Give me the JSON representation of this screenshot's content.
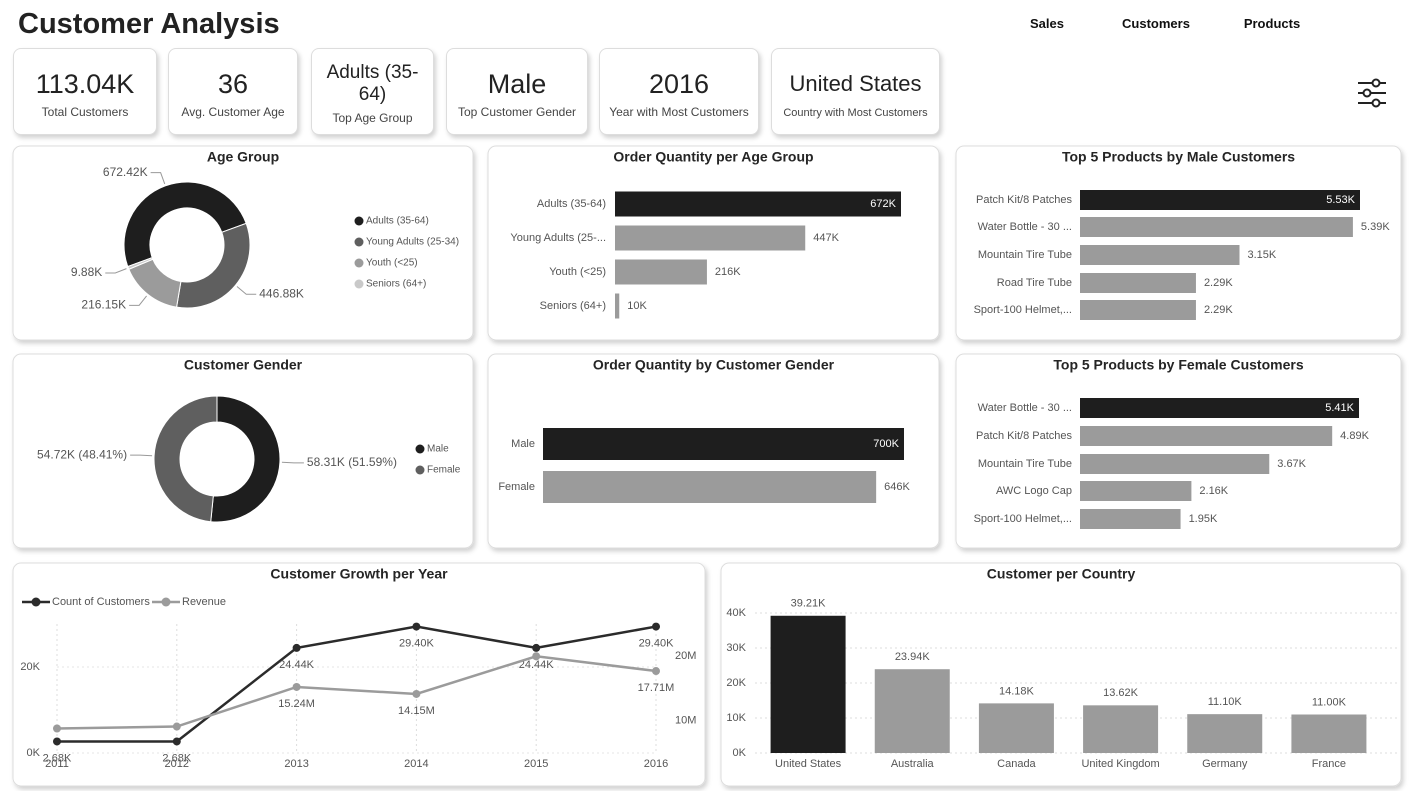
{
  "header": {
    "title": "Customer Analysis",
    "nav": [
      "Sales",
      "Customers",
      "Products"
    ]
  },
  "kpis": [
    {
      "value": "113.04K",
      "label": "Total Customers"
    },
    {
      "value": "36",
      "label": "Avg. Customer Age"
    },
    {
      "value": "Adults (35-64)",
      "label": "Top Age Group"
    },
    {
      "value": "Male",
      "label": "Top Customer Gender"
    },
    {
      "value": "2016",
      "label": "Year with Most Customers"
    },
    {
      "value": "United States",
      "label": "Country with Most Customers"
    }
  ],
  "chart_data": [
    {
      "type": "donut",
      "title": "Age Group",
      "categories": [
        "Adults (35-64)",
        "Young Adults (25-34)",
        "Youth (<25)",
        "Seniors (64+)"
      ],
      "values": [
        672420,
        446880,
        216150,
        9880
      ],
      "value_labels": [
        "672.42K",
        "446.88K",
        "216.15K",
        "9.88K"
      ],
      "colors": [
        "#1e1e1e",
        "#5f5f5f",
        "#9b9b9b",
        "#c9c9c9"
      ],
      "legend": "right"
    },
    {
      "type": "hbar",
      "title": "Order Quantity per Age Group",
      "categories": [
        "Adults (35-64)",
        "Young Adults (25-...",
        "Youth (<25)",
        "Seniors (64+)"
      ],
      "values": [
        672000,
        447000,
        216000,
        10000
      ],
      "value_labels": [
        "672K",
        "447K",
        "216K",
        "10K"
      ],
      "colors": [
        "#1e1e1e",
        "#9b9b9b",
        "#9b9b9b",
        "#9b9b9b"
      ]
    },
    {
      "type": "hbar",
      "title": "Top 5 Products by Male Customers",
      "categories": [
        "Patch Kit/8 Patches",
        "Water Bottle - 30 ...",
        "Mountain Tire Tube",
        "Road Tire Tube",
        "Sport-100 Helmet,..."
      ],
      "values": [
        5530,
        5390,
        3150,
        2290,
        2290
      ],
      "value_labels": [
        "5.53K",
        "5.39K",
        "3.15K",
        "2.29K",
        "2.29K"
      ],
      "colors": [
        "#1e1e1e",
        "#9b9b9b",
        "#9b9b9b",
        "#9b9b9b",
        "#9b9b9b"
      ]
    },
    {
      "type": "donut",
      "title": "Customer Gender",
      "categories": [
        "Male",
        "Female"
      ],
      "values": [
        58310,
        54720
      ],
      "value_labels": [
        "58.31K (51.59%)",
        "54.72K (48.41%)"
      ],
      "colors": [
        "#1e1e1e",
        "#5f5f5f"
      ],
      "legend": "right"
    },
    {
      "type": "hbar",
      "title": "Order Quantity by Customer Gender",
      "categories": [
        "Male",
        "Female"
      ],
      "values": [
        700000,
        646000
      ],
      "value_labels": [
        "700K",
        "646K"
      ],
      "colors": [
        "#1e1e1e",
        "#9b9b9b"
      ]
    },
    {
      "type": "hbar",
      "title": "Top 5 Products by Female Customers",
      "categories": [
        "Water Bottle - 30 ...",
        "Patch Kit/8 Patches",
        "Mountain Tire Tube",
        "AWC Logo Cap",
        "Sport-100 Helmet,..."
      ],
      "values": [
        5410,
        4890,
        3670,
        2160,
        1950
      ],
      "value_labels": [
        "5.41K",
        "4.89K",
        "3.67K",
        "2.16K",
        "1.95K"
      ],
      "colors": [
        "#1e1e1e",
        "#9b9b9b",
        "#9b9b9b",
        "#9b9b9b",
        "#9b9b9b"
      ]
    },
    {
      "type": "line",
      "title": "Customer Growth per Year",
      "x": [
        2011,
        2012,
        2013,
        2014,
        2015,
        2016
      ],
      "xlim": [
        2011,
        2016
      ],
      "series": [
        {
          "name": "Count of Customers",
          "color": "#2b2b2b",
          "values": [
            2680,
            2680,
            24440,
            29400,
            24440,
            29400
          ],
          "value_labels": [
            "2.68K",
            "2.68K",
            "24.44K",
            "29.40K",
            "24.44K",
            "29.40K"
          ]
        },
        {
          "name": "Revenue",
          "color": "#9b9b9b",
          "axis": "y2",
          "values": [
            8800000,
            9100000,
            15240000,
            14150000,
            20000000,
            17710000
          ],
          "value_labels": [
            null,
            null,
            "15.24M",
            "14.15M",
            null,
            "17.71M"
          ]
        }
      ],
      "ylim": [
        0,
        30000
      ],
      "yticks": [
        {
          "value": 0,
          "label": "0K"
        },
        {
          "value": 20000,
          "label": "20K"
        }
      ],
      "y2lim": [
        5000000,
        25000000
      ],
      "y2ticks": [
        {
          "value": 10000000,
          "label": "10M"
        },
        {
          "value": 20000000,
          "label": "20M"
        }
      ],
      "grid": true,
      "legend": "top-left"
    },
    {
      "type": "bar",
      "title": "Customer per Country",
      "categories": [
        "United States",
        "Australia",
        "Canada",
        "United Kingdom",
        "Germany",
        "France"
      ],
      "values": [
        39210,
        23940,
        14180,
        13620,
        11100,
        11000
      ],
      "value_labels": [
        "39.21K",
        "23.94K",
        "14.18K",
        "13.62K",
        "11.10K",
        "11.00K"
      ],
      "colors": [
        "#1e1e1e",
        "#9b9b9b",
        "#9b9b9b",
        "#9b9b9b",
        "#9b9b9b",
        "#9b9b9b"
      ],
      "ylim": [
        0,
        44000
      ],
      "yticks": [
        {
          "value": 0,
          "label": "0K"
        },
        {
          "value": 10000,
          "label": "10K"
        },
        {
          "value": 20000,
          "label": "20K"
        },
        {
          "value": 30000,
          "label": "30K"
        },
        {
          "value": 40000,
          "label": "40K"
        }
      ],
      "grid": true
    }
  ]
}
